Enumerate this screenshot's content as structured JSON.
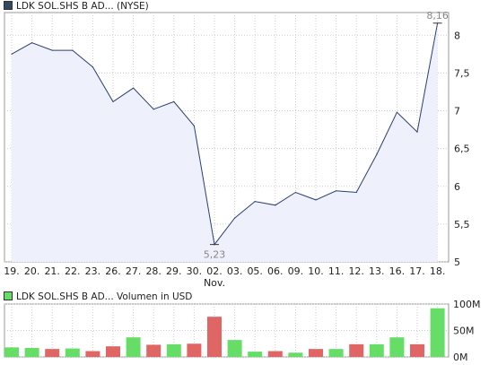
{
  "price_legend": {
    "label": "LDK SOL.SHS B AD... (NYSE)",
    "swatch_color": "#34495e"
  },
  "volume_legend": {
    "label": "LDK SOL.SHS B AD... Volumen in USD",
    "swatch_color": "#66dd66"
  },
  "colors": {
    "line": "#2c3e70",
    "fill": "#eef0fc",
    "grid": "#cccccc",
    "up": "#66dd66",
    "down": "#e06666"
  },
  "chart_data": [
    {
      "type": "area",
      "x": [
        "19.",
        "20.",
        "21.",
        "22.",
        "23.",
        "26.",
        "27.",
        "28.",
        "29.",
        "30.",
        "02.",
        "03.",
        "05.",
        "06.",
        "09.",
        "10.",
        "11.",
        "12.",
        "13.",
        "16.",
        "17.",
        "18."
      ],
      "x_month_label": "Nov.",
      "series": [
        {
          "values": [
            7.75,
            7.9,
            7.8,
            7.8,
            7.58,
            7.12,
            7.3,
            7.02,
            7.12,
            6.8,
            5.23,
            5.58,
            5.8,
            5.75,
            5.92,
            5.82,
            5.94,
            5.92,
            6.42,
            6.98,
            6.72,
            8.16
          ]
        }
      ],
      "annotations": [
        {
          "label": "8,16",
          "index": 21
        },
        {
          "label": "5,23",
          "index": 10
        }
      ],
      "y_ticks": [
        "5",
        "5,5",
        "6",
        "6,5",
        "7",
        "7,5",
        "8"
      ],
      "ylim": [
        5,
        8.3
      ],
      "grid": true
    },
    {
      "type": "bar",
      "categories": [
        "19.",
        "20.",
        "21.",
        "22.",
        "23.",
        "26.",
        "27.",
        "28.",
        "29.",
        "30.",
        "02.",
        "03.",
        "05.",
        "06.",
        "09.",
        "10.",
        "11.",
        "12.",
        "13.",
        "16.",
        "17.",
        "18."
      ],
      "values": [
        18,
        17,
        15,
        16,
        11,
        20,
        37,
        23,
        24,
        25,
        76,
        32,
        10,
        11,
        8,
        15,
        15,
        24,
        24,
        37,
        24,
        92
      ],
      "up": [
        true,
        true,
        false,
        true,
        false,
        false,
        true,
        false,
        true,
        false,
        false,
        true,
        true,
        false,
        true,
        false,
        true,
        false,
        true,
        true,
        false,
        true
      ],
      "y_ticks": [
        "0M",
        "50M",
        "100M"
      ],
      "ylim": [
        0,
        100
      ],
      "grid": true
    }
  ]
}
